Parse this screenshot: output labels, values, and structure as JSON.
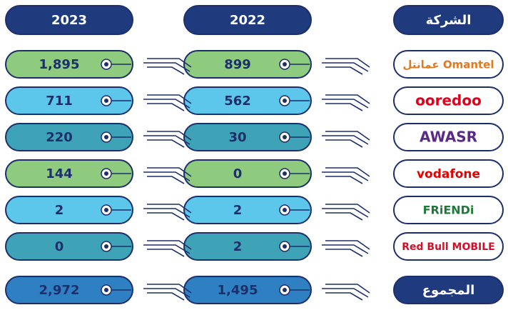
{
  "table": {
    "header": [
      "الشركة",
      "2022",
      "2023"
    ],
    "rows": [
      [
        "عمانتل Omantel",
        "899",
        "1,895"
      ],
      [
        "ooredoo",
        "562",
        "711"
      ],
      [
        "AWASR",
        "30",
        "220"
      ],
      [
        "vodafone",
        "0",
        "144"
      ],
      [
        "FRiENDi",
        "2",
        "2"
      ],
      [
        "Red Bull MOBILE",
        "2",
        "0"
      ]
    ],
    "total": [
      "المجموع",
      "1,495",
      "2,972"
    ]
  }
}
